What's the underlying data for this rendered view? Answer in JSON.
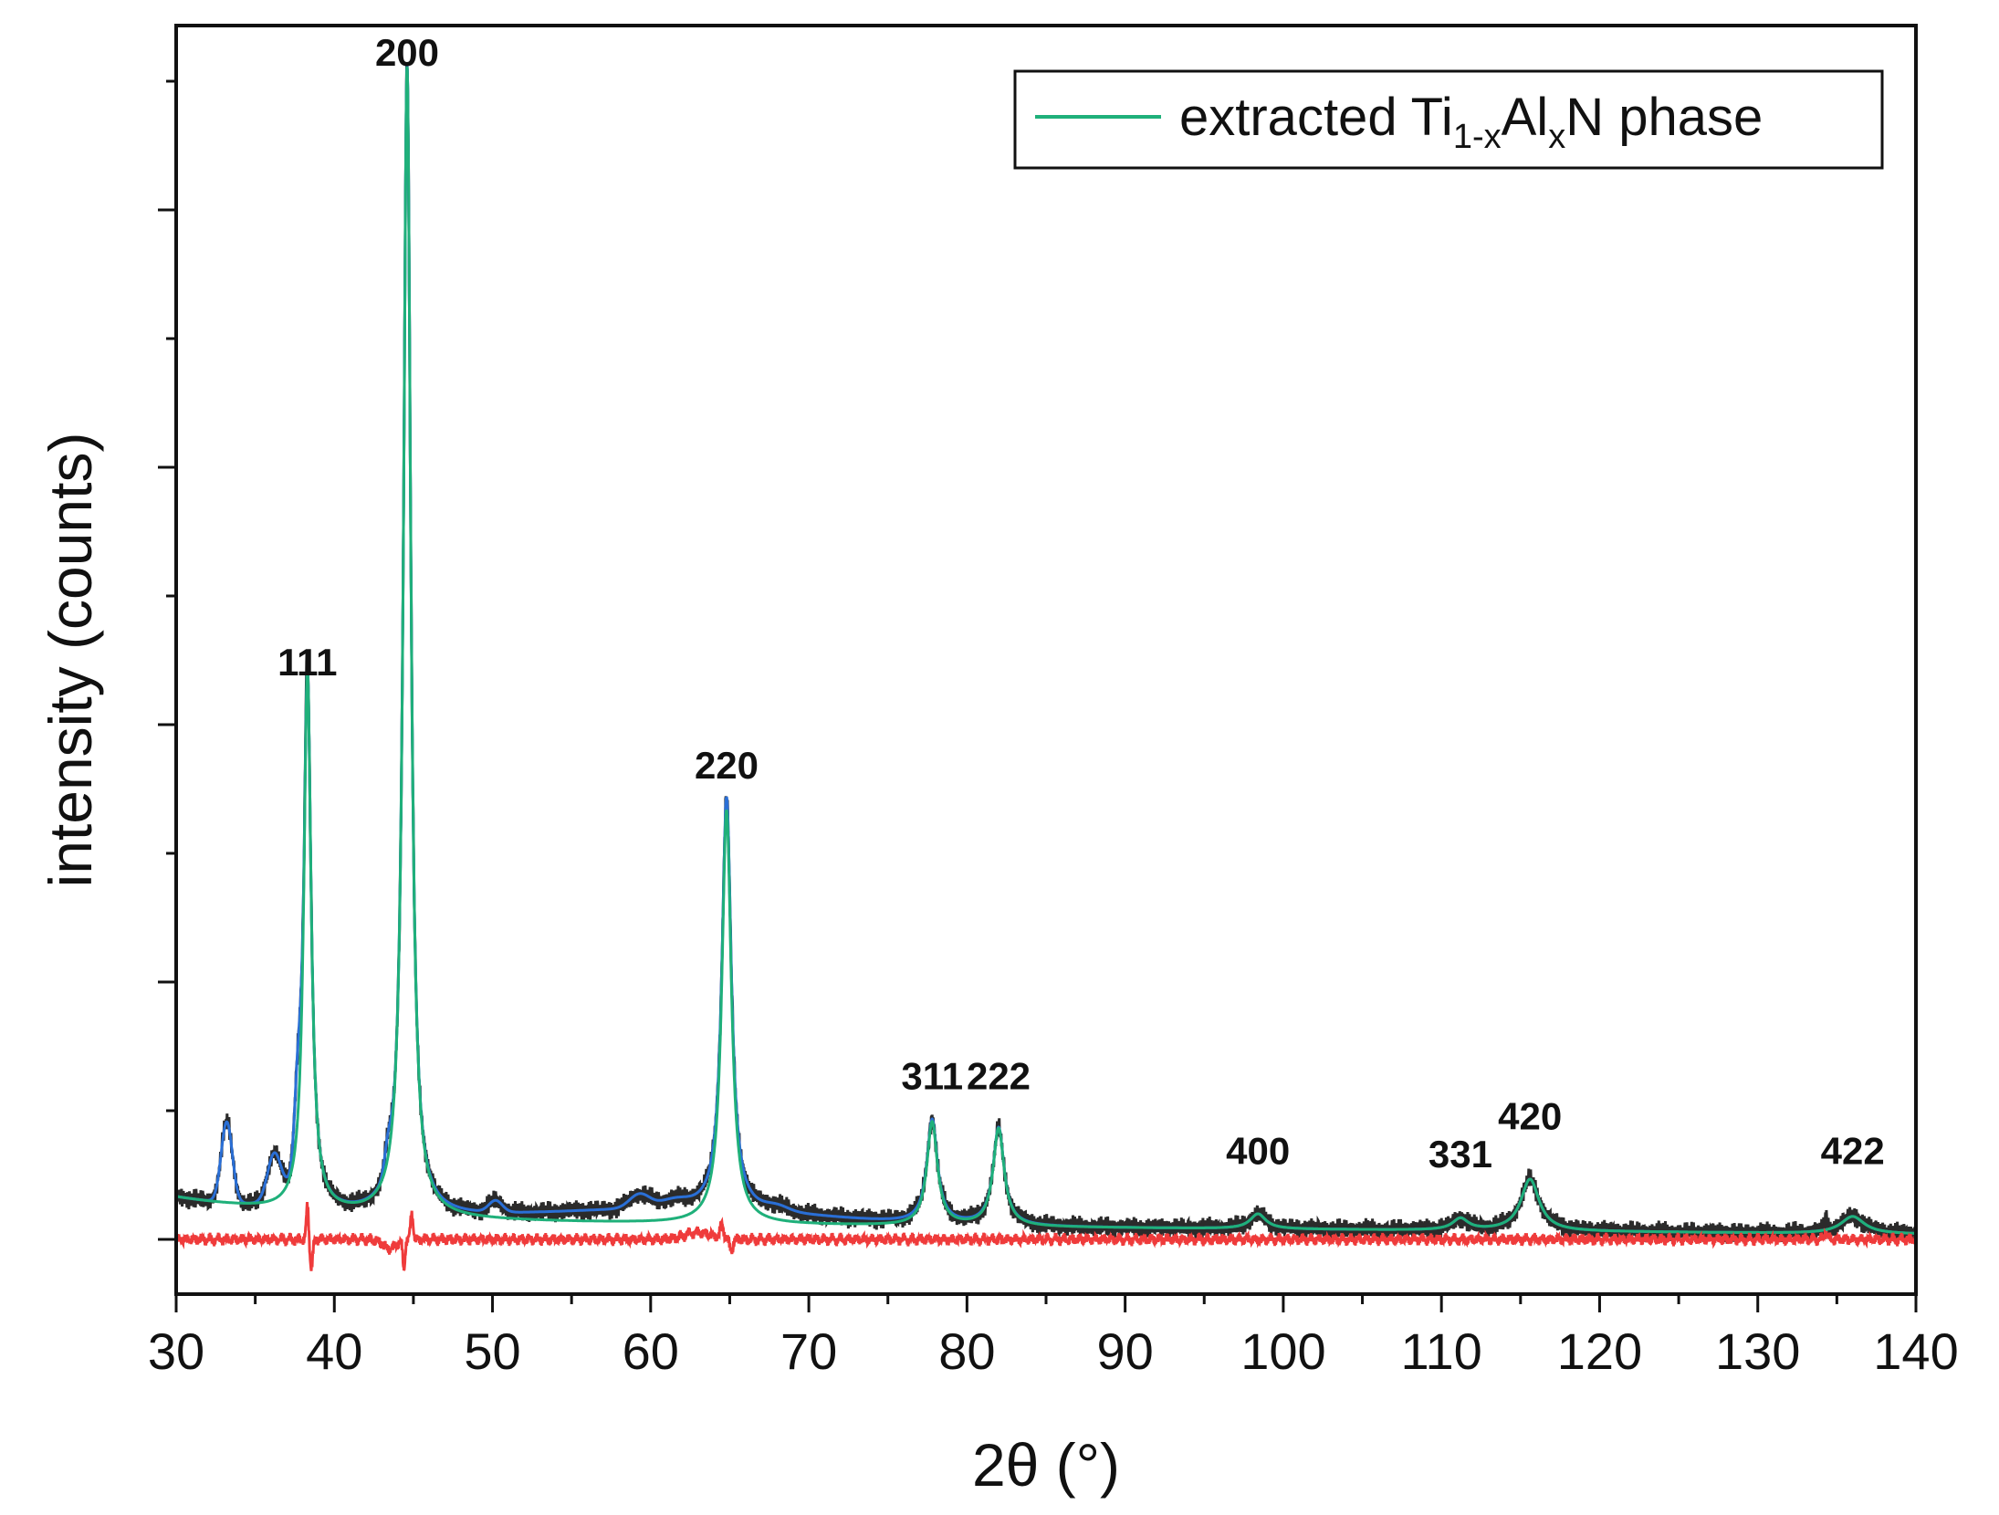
{
  "chart_data": {
    "type": "line",
    "xlabel": "2θ (°)",
    "ylabel": "intensity (counts)",
    "xlim": [
      30,
      140
    ],
    "x_ticks": [
      "30",
      "40",
      "50",
      "60",
      "70",
      "80",
      "90",
      "100",
      "110",
      "120",
      "130",
      "140"
    ],
    "y_ticks_labeled": false,
    "legend": {
      "position": "top-right",
      "entries": [
        {
          "text_main": "extracted Ti",
          "sub1": "1-x",
          "text_mid": "Al",
          "sub2": "x",
          "text_end": "N phase",
          "color": "#1fb07a"
        }
      ]
    },
    "series": [
      {
        "role": "measured",
        "color": "#2b2b2b"
      },
      {
        "role": "fit",
        "color": "#2a6fd6"
      },
      {
        "name": "extracted Ti1-xAlxN phase",
        "color": "#1fb07a"
      },
      {
        "role": "difference",
        "color": "#ef3b3b"
      }
    ],
    "peaks": [
      {
        "label": "111",
        "x": 38.3,
        "y": 0.47
      },
      {
        "label": "200",
        "x": 44.6,
        "y": 1.0
      },
      {
        "label": "220",
        "x": 64.8,
        "y": 0.38
      },
      {
        "label": "311",
        "x": 77.8,
        "y": 0.11
      },
      {
        "label": "222",
        "x": 82.0,
        "y": 0.11
      },
      {
        "label": "400",
        "x": 98.4,
        "y": 0.045
      },
      {
        "label": "331",
        "x": 111.2,
        "y": 0.042
      },
      {
        "label": "420",
        "x": 115.6,
        "y": 0.075
      },
      {
        "label": "422",
        "x": 136.0,
        "y": 0.045
      }
    ]
  }
}
